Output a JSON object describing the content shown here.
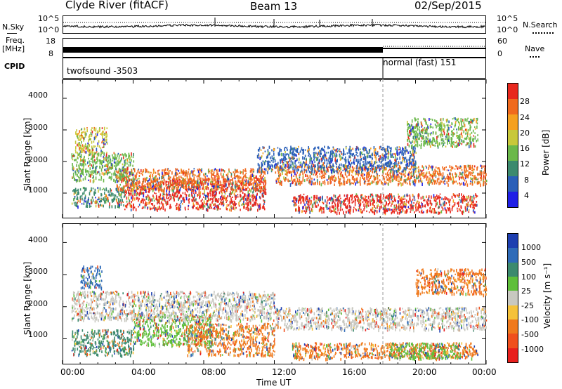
{
  "header": {
    "station": "Clyde River (fitACF)",
    "beam": "Beam 13",
    "date": "02/Sep/2015"
  },
  "nsky_panel": {
    "left_label": "N.Sky",
    "left_ticks": [
      "10^5",
      "10^0"
    ],
    "right_ticks": [
      "10^5",
      "10^0"
    ],
    "right_label": "N.Search",
    "right_label_style": "dotted"
  },
  "freq_panel": {
    "label_top": "Freq.",
    "label_unit": "[MHz]",
    "left_ticks": [
      "18",
      "8"
    ],
    "right_ticks": [
      "60",
      "0"
    ],
    "right_label": "Nave",
    "right_label_style": "dotted"
  },
  "cpid_panel": {
    "label": "CPID",
    "mode_1": "twofsound  -3503",
    "mode_2": "normal (fast) 151"
  },
  "chart_data": [
    {
      "type": "heatmap",
      "parameter": "Power",
      "xlabel": "",
      "ylabel": "Slant Range [km]",
      "xlim_hours": [
        0,
        24
      ],
      "ylim_km": [
        200,
        4600
      ],
      "y_ticks": [
        "1000",
        "2000",
        "3000",
        "4000"
      ],
      "colorbar_label": "Power [dB]",
      "colorbar_ticks": [
        "4",
        "8",
        "12",
        "16",
        "20",
        "24",
        "28"
      ],
      "colorbar_colors": [
        "#1f1fe6",
        "#2a5fb8",
        "#3c8a6e",
        "#6bb84a",
        "#c8c83a",
        "#f5a020",
        "#f06a1e",
        "#e8281e"
      ],
      "scatter_bands": [
        {
          "range_km": [
            600,
            1200
          ],
          "x_hours": [
            0.5,
            3.5
          ],
          "dominant": "#3c8a6e"
        },
        {
          "range_km": [
            500,
            1500
          ],
          "x_hours": [
            3.5,
            11.5
          ],
          "dominant": "#e8281e"
        },
        {
          "range_km": [
            1100,
            1800
          ],
          "x_hours": [
            3.0,
            11.5
          ],
          "dominant": "#f06a1e"
        },
        {
          "range_km": [
            1400,
            2300
          ],
          "x_hours": [
            0.5,
            4.0
          ],
          "dominant": "#6bb84a"
        },
        {
          "range_km": [
            2300,
            3100
          ],
          "x_hours": [
            0.7,
            2.5
          ],
          "dominant": "#c8c83a"
        },
        {
          "range_km": [
            1300,
            1900
          ],
          "x_hours": [
            12.0,
            24.0
          ],
          "dominant": "#f06a1e"
        },
        {
          "range_km": [
            400,
            1000
          ],
          "x_hours": [
            13.0,
            23.5
          ],
          "dominant": "#e8281e"
        },
        {
          "range_km": [
            1700,
            2500
          ],
          "x_hours": [
            11.0,
            20.0
          ],
          "dominant": "#2a5fb8"
        },
        {
          "range_km": [
            2500,
            3400
          ],
          "x_hours": [
            19.5,
            23.5
          ],
          "dominant": "#6bb84a"
        }
      ]
    },
    {
      "type": "heatmap",
      "parameter": "Velocity",
      "xlabel": "Time UT",
      "ylabel": "Slant Range [km]",
      "xlim_hours": [
        0,
        24
      ],
      "ylim_km": [
        200,
        4600
      ],
      "x_ticks": [
        "00:00",
        "04:00",
        "08:00",
        "12:00",
        "16:00",
        "20:00",
        "00:00"
      ],
      "y_ticks": [
        "1000",
        "2000",
        "3000",
        "4000"
      ],
      "colorbar_label": "Velocity [m s⁻¹]",
      "colorbar_ticks": [
        "1000",
        "500",
        "100",
        "25",
        "-25",
        "-100",
        "-500",
        "-1000"
      ],
      "colorbar_colors": [
        "#1e3fb0",
        "#2f6bb8",
        "#3c8a6e",
        "#5fbf3a",
        "#c8c8c0",
        "#f5c23a",
        "#f07a1e",
        "#f0501e",
        "#e8201e"
      ],
      "scatter_bands": [
        {
          "range_km": [
            500,
            1300
          ],
          "x_hours": [
            0.5,
            4.0
          ],
          "dominant": "#3c8a6e"
        },
        {
          "range_km": [
            800,
            1800
          ],
          "x_hours": [
            4.0,
            8.5
          ],
          "dominant": "#5fbf3a"
        },
        {
          "range_km": [
            500,
            1500
          ],
          "x_hours": [
            7.0,
            12.0
          ],
          "dominant": "#f07a1e"
        },
        {
          "range_km": [
            1600,
            2500
          ],
          "x_hours": [
            0.5,
            12.0
          ],
          "dominant": "#c8c8c0"
        },
        {
          "range_km": [
            2600,
            3300
          ],
          "x_hours": [
            1.0,
            2.2
          ],
          "dominant": "#2f6bb8"
        },
        {
          "range_km": [
            1300,
            2000
          ],
          "x_hours": [
            12.0,
            24.0
          ],
          "dominant": "#c8c8c0"
        },
        {
          "range_km": [
            400,
            900
          ],
          "x_hours": [
            13.0,
            23.5
          ],
          "dominant": "#f07a1e"
        },
        {
          "range_km": [
            400,
            900
          ],
          "x_hours": [
            18.5,
            22.5
          ],
          "dominant": "#5fbf3a"
        },
        {
          "range_km": [
            2400,
            3200
          ],
          "x_hours": [
            20.0,
            24.0
          ],
          "dominant": "#f07a1e"
        }
      ]
    }
  ]
}
